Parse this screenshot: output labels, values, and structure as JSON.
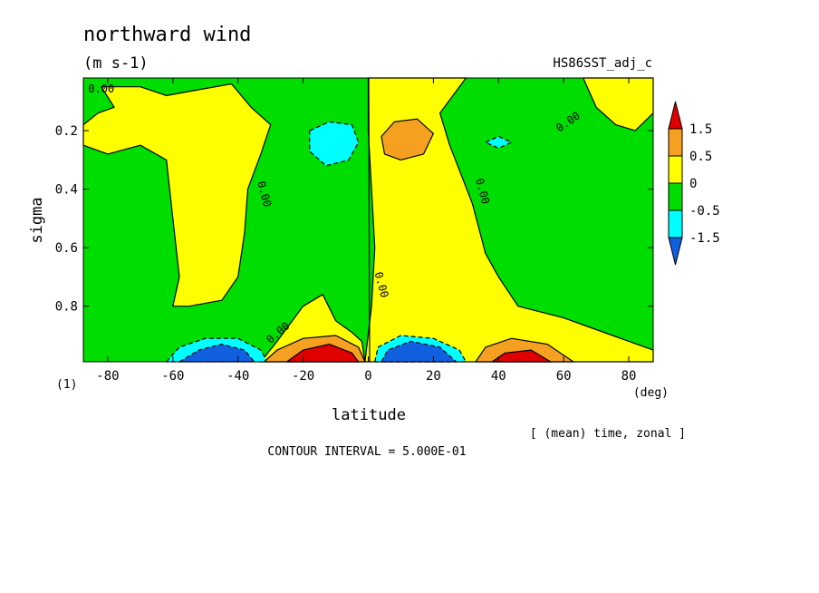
{
  "chart_data": {
    "type": "heatmap",
    "title": "northward wind",
    "units": "(m s-1)",
    "dataset": "HS86SST_adj_c",
    "xlabel": "latitude",
    "xunit": "(deg)",
    "ylabel": "sigma",
    "corner_label": "(1)",
    "mean_note": "[ (mean) time, zonal ]",
    "contour_interval": "CONTOUR INTERVAL = 5.000E-01",
    "xlim": [
      -87.5,
      87.5
    ],
    "ylim": [
      0.02,
      0.99
    ],
    "y_inverted": true,
    "x_ticks": [
      {
        "value": -80,
        "label": "-80"
      },
      {
        "value": -60,
        "label": "-60"
      },
      {
        "value": -40,
        "label": "-40"
      },
      {
        "value": -20,
        "label": "-20"
      },
      {
        "value": 0,
        "label": "0"
      },
      {
        "value": 20,
        "label": "20"
      },
      {
        "value": 40,
        "label": "40"
      },
      {
        "value": 60,
        "label": "60"
      },
      {
        "value": 80,
        "label": "80"
      }
    ],
    "y_ticks": [
      {
        "value": 0.2,
        "label": "0.2"
      },
      {
        "value": 0.4,
        "label": "0.4"
      },
      {
        "value": 0.6,
        "label": "0.6"
      },
      {
        "value": 0.8,
        "label": "0.8"
      }
    ],
    "contour_labels": [
      {
        "lat": -82,
        "sigma": 0.07,
        "label": "0.00"
      },
      {
        "lat": -33,
        "sigma": 0.42,
        "label": "0.00"
      },
      {
        "lat": 3,
        "sigma": 0.73,
        "label": "0.00"
      },
      {
        "lat": -27,
        "sigma": 0.9,
        "label": "0.00"
      },
      {
        "lat": 34,
        "sigma": 0.41,
        "label": "0.00"
      },
      {
        "lat": 62,
        "sigma": 0.18,
        "label": "0.00"
      }
    ],
    "colorbar": {
      "levels": [
        "1.5",
        "0.5",
        "0",
        "-0.5",
        "-1.5"
      ],
      "colors": [
        "#e00000",
        "#f5a020",
        "#ffff00",
        "#00dd00",
        "#00ffff",
        "#1060e0"
      ]
    },
    "fill_colors": {
      "strong_pos": "#e00000",
      "pos_1": "#f5a020",
      "pos_05": "#ffff00",
      "neutral": "#00dd00",
      "neg_05": "#00ffff",
      "strong_neg": "#1060e0"
    },
    "regions": [
      {
        "name": "nh-subtropical-northward",
        "level": "pos_05",
        "points": [
          [
            0,
            0.02
          ],
          [
            30,
            0.02
          ],
          [
            26,
            0.08
          ],
          [
            22,
            0.14
          ],
          [
            25,
            0.25
          ],
          [
            32,
            0.45
          ],
          [
            36,
            0.62
          ],
          [
            40,
            0.7
          ],
          [
            46,
            0.8
          ],
          [
            60,
            0.84
          ],
          [
            70,
            0.88
          ],
          [
            80,
            0.92
          ],
          [
            87.5,
            0.95
          ],
          [
            87.5,
            0.99
          ],
          [
            -1,
            0.99
          ],
          [
            1,
            0.8
          ],
          [
            2,
            0.6
          ],
          [
            1,
            0.4
          ],
          [
            0,
            0.2
          ]
        ]
      },
      {
        "name": "sh-high-lat-northward",
        "level": "pos_05",
        "points": [
          [
            -87.5,
            0.18
          ],
          [
            -83,
            0.14
          ],
          [
            -78,
            0.12
          ],
          [
            -82,
            0.05
          ],
          [
            -70,
            0.05
          ],
          [
            -62,
            0.08
          ],
          [
            -52,
            0.06
          ],
          [
            -42,
            0.04
          ],
          [
            -36,
            0.12
          ],
          [
            -30,
            0.18
          ],
          [
            -33,
            0.28
          ],
          [
            -37,
            0.4
          ],
          [
            -38,
            0.55
          ],
          [
            -40,
            0.7
          ],
          [
            -45,
            0.78
          ],
          [
            -55,
            0.8
          ],
          [
            -60,
            0.8
          ],
          [
            -58,
            0.7
          ],
          [
            -60,
            0.5
          ],
          [
            -62,
            0.3
          ],
          [
            -70,
            0.25
          ],
          [
            -80,
            0.28
          ],
          [
            -87.5,
            0.25
          ]
        ]
      },
      {
        "name": "sh-lower-northward",
        "level": "pos_05",
        "points": [
          [
            -33,
            0.99
          ],
          [
            -28,
            0.92
          ],
          [
            -20,
            0.8
          ],
          [
            -14,
            0.76
          ],
          [
            -10,
            0.85
          ],
          [
            -5,
            0.89
          ],
          [
            -2,
            0.92
          ],
          [
            -1,
            0.99
          ]
        ]
      },
      {
        "name": "nh-polar-northward",
        "level": "pos_05",
        "points": [
          [
            66,
            0.02
          ],
          [
            87.5,
            0.02
          ],
          [
            87.5,
            0.14
          ],
          [
            82,
            0.2
          ],
          [
            76,
            0.18
          ],
          [
            70,
            0.12
          ]
        ]
      },
      {
        "name": "upper-tropical-southward-cell",
        "level": "neg_05",
        "points": [
          [
            -18,
            0.2
          ],
          [
            -12,
            0.17
          ],
          [
            -5,
            0.18
          ],
          [
            -3,
            0.24
          ],
          [
            -6,
            0.3
          ],
          [
            -13,
            0.32
          ],
          [
            -18,
            0.27
          ]
        ]
      },
      {
        "name": "upper-tropical-northward-cell",
        "level": "pos_1",
        "points": [
          [
            4,
            0.22
          ],
          [
            8,
            0.17
          ],
          [
            15,
            0.16
          ],
          [
            20,
            0.21
          ],
          [
            17,
            0.28
          ],
          [
            10,
            0.3
          ],
          [
            5,
            0.28
          ]
        ]
      },
      {
        "name": "nh-upper-southward-blob",
        "level": "neg_05",
        "points": [
          [
            36,
            0.24
          ],
          [
            40,
            0.22
          ],
          [
            44,
            0.24
          ],
          [
            40,
            0.26
          ]
        ]
      },
      {
        "name": "sh-surface-southward",
        "level": "neg_05",
        "points": [
          [
            -62,
            0.99
          ],
          [
            -58,
            0.94
          ],
          [
            -50,
            0.91
          ],
          [
            -40,
            0.91
          ],
          [
            -33,
            0.95
          ],
          [
            -31,
            0.99
          ]
        ]
      },
      {
        "name": "sh-surface-southward-core",
        "level": "strong_neg",
        "points": [
          [
            -58,
            0.99
          ],
          [
            -52,
            0.95
          ],
          [
            -45,
            0.93
          ],
          [
            -38,
            0.95
          ],
          [
            -35,
            0.99
          ]
        ]
      },
      {
        "name": "sh-tropical-surface-northward",
        "level": "pos_1",
        "points": [
          [
            -32,
            0.99
          ],
          [
            -28,
            0.95
          ],
          [
            -20,
            0.91
          ],
          [
            -10,
            0.9
          ],
          [
            -3,
            0.94
          ],
          [
            -1,
            0.99
          ]
        ]
      },
      {
        "name": "sh-tropical-surface-core",
        "level": "strong_pos",
        "points": [
          [
            -25,
            0.99
          ],
          [
            -20,
            0.95
          ],
          [
            -12,
            0.93
          ],
          [
            -5,
            0.96
          ],
          [
            -3,
            0.99
          ]
        ]
      },
      {
        "name": "nh-tropical-surface-southward",
        "level": "neg_05",
        "points": [
          [
            2,
            0.99
          ],
          [
            3,
            0.94
          ],
          [
            10,
            0.9
          ],
          [
            20,
            0.91
          ],
          [
            28,
            0.95
          ],
          [
            30,
            0.99
          ]
        ]
      },
      {
        "name": "nh-tropical-surface-core",
        "level": "strong_neg",
        "points": [
          [
            4,
            0.99
          ],
          [
            6,
            0.95
          ],
          [
            13,
            0.92
          ],
          [
            22,
            0.94
          ],
          [
            27,
            0.99
          ]
        ]
      },
      {
        "name": "nh-midlat-surface-northward",
        "level": "pos_1",
        "points": [
          [
            33,
            0.99
          ],
          [
            36,
            0.94
          ],
          [
            44,
            0.91
          ],
          [
            55,
            0.93
          ],
          [
            63,
            0.99
          ]
        ]
      },
      {
        "name": "nh-midlat-surface-core",
        "level": "strong_pos",
        "points": [
          [
            38,
            0.99
          ],
          [
            42,
            0.96
          ],
          [
            50,
            0.95
          ],
          [
            56,
            0.99
          ]
        ]
      }
    ]
  }
}
